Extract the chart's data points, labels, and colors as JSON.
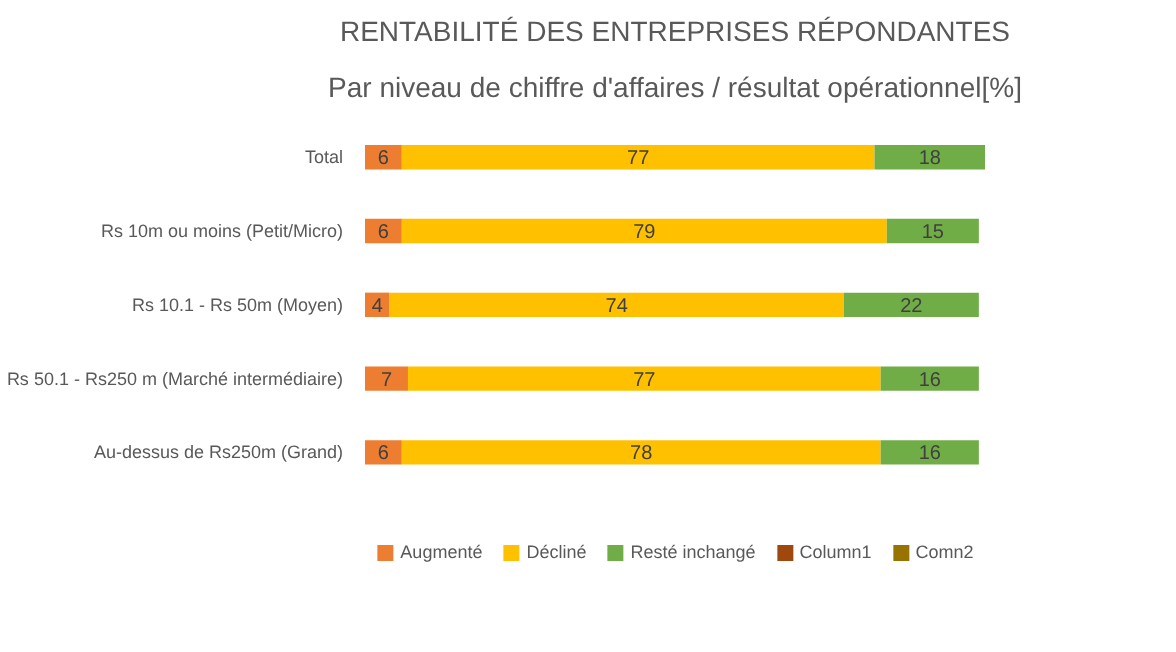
{
  "chart_data": {
    "type": "bar",
    "orientation": "horizontal",
    "stacked": true,
    "title": "RENTABILITÉ DES ENTREPRISES RÉPONDANTES",
    "subtitle": "Par niveau de chiffre d'affaires / résultat opérationnel[%]",
    "categories": [
      "Total",
      "Rs 10m ou moins (Petit/Micro)",
      "Rs 10.1 - Rs 50m (Moyen)",
      "Rs 50.1 - Rs250 m (Marché intermédiaire)",
      "Au-dessus de Rs250m (Grand)"
    ],
    "series": [
      {
        "name": "Augmenté",
        "color": "#ed7d31",
        "values": [
          6,
          6,
          4,
          7,
          6
        ]
      },
      {
        "name": "Décliné",
        "color": "#ffc000",
        "values": [
          77,
          79,
          74,
          77,
          78
        ]
      },
      {
        "name": "Resté inchangé",
        "color": "#70ad47",
        "values": [
          18,
          15,
          22,
          16,
          16
        ]
      },
      {
        "name": "Column1",
        "color": "#9e480e",
        "values": [
          null,
          null,
          null,
          null,
          null
        ]
      },
      {
        "name": "Comn2",
        "color": "#997300",
        "values": [
          null,
          null,
          null,
          null,
          null
        ]
      }
    ],
    "data_labels": true,
    "legend": "bottom",
    "grid": false
  }
}
